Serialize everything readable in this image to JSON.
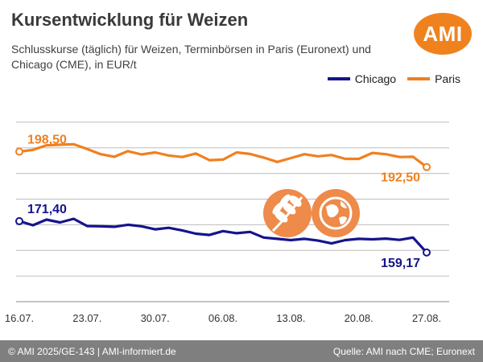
{
  "header": {
    "title": "Kursentwicklung für Weizen",
    "subtitle": "Schlusskurse (täglich) für Weizen, Terminbörsen in Paris (Euronext) und Chicago (CME), in EUR/t",
    "logo_text": "AMI"
  },
  "footer": {
    "left": "© AMI 2025/GE-143 | AMI-informiert.de",
    "right": "Quelle: AMI nach CME; Euronext"
  },
  "colors": {
    "paris": "#f08020",
    "chicago": "#15148c",
    "grid": "#bdbdbd",
    "brand": "#f0821e",
    "icon_fill": "#ee8a4a",
    "footer_bg": "#7f7f7f"
  },
  "icons": [
    "wheat-icon",
    "globe-icon"
  ],
  "chart_data": {
    "type": "line",
    "title": "Kursentwicklung für Weizen",
    "subtitle": "Schlusskurse (täglich) für Weizen, Terminbörsen in Paris (Euronext) und Chicago (CME), in EUR/t",
    "xlabel": "",
    "ylabel": "",
    "x_tick_labels": [
      "16.07.",
      "23.07.",
      "30.07.",
      "06.08.",
      "13.08.",
      "20.08.",
      "27.08."
    ],
    "x_dates": [
      "16.07.",
      "17.07.",
      "18.07.",
      "21.07.",
      "22.07.",
      "23.07.",
      "24.07.",
      "25.07.",
      "28.07.",
      "29.07.",
      "30.07.",
      "31.07.",
      "01.08.",
      "04.08.",
      "05.08.",
      "06.08.",
      "07.08.",
      "08.08.",
      "11.08.",
      "12.08.",
      "13.08.",
      "14.08.",
      "15.08.",
      "18.08.",
      "19.08.",
      "20.08.",
      "21.08.",
      "22.08.",
      "25.08.",
      "26.08.",
      "27.08."
    ],
    "ylim": [
      140,
      220
    ],
    "grid": "horizontal",
    "legend_position": "top-right",
    "series": [
      {
        "name": "Chicago",
        "color": "#15148c",
        "start_label": "171,40",
        "end_label": "159,17",
        "values": [
          171.4,
          169.8,
          172.0,
          170.9,
          172.3,
          169.5,
          169.4,
          169.2,
          170.0,
          169.4,
          168.2,
          168.8,
          167.8,
          166.5,
          166.0,
          167.5,
          166.7,
          167.2,
          165.0,
          164.5,
          164.0,
          164.5,
          163.8,
          162.7,
          164.0,
          164.5,
          164.3,
          164.6,
          164.1,
          165.0,
          159.17
        ]
      },
      {
        "name": "Paris",
        "color": "#f08020",
        "start_label": "198,50",
        "end_label": "192,50",
        "values": [
          198.5,
          199.2,
          201.0,
          201.2,
          201.4,
          199.5,
          197.5,
          196.5,
          198.7,
          197.4,
          198.2,
          197.0,
          196.4,
          197.8,
          195.2,
          195.4,
          198.2,
          197.6,
          196.2,
          194.5,
          196.0,
          197.5,
          196.7,
          197.2,
          195.7,
          195.7,
          198.0,
          197.5,
          196.4,
          196.5,
          192.5
        ]
      }
    ]
  }
}
